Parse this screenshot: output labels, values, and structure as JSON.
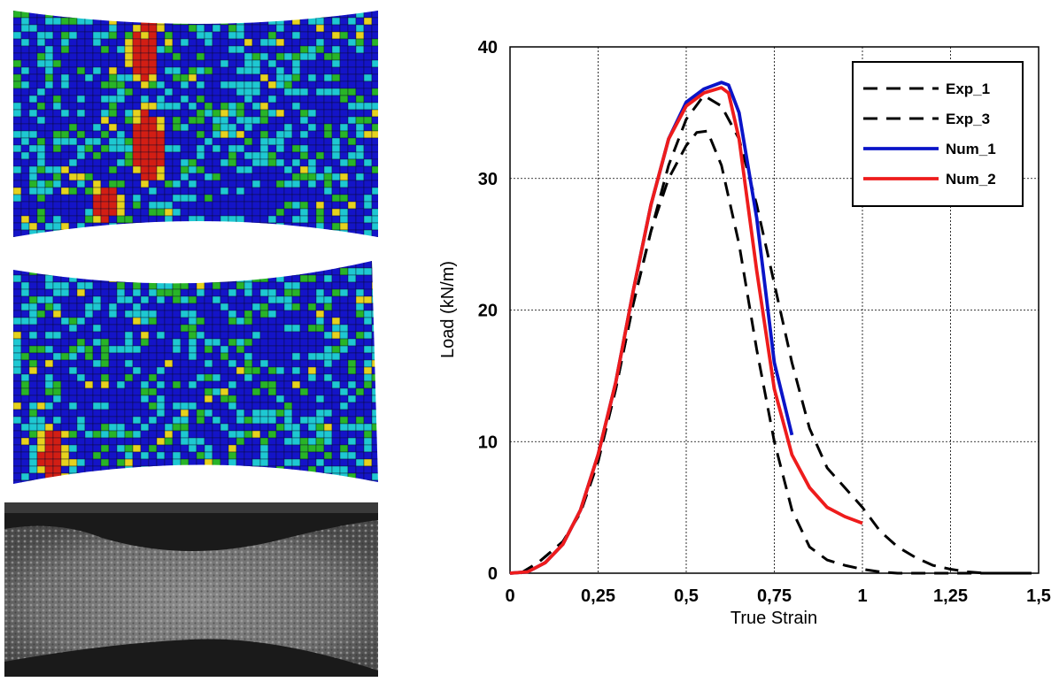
{
  "colors": {
    "contour_levels": [
      "#1414c8",
      "#1ec8d2",
      "#28b428",
      "#e6d21e",
      "#d21e14"
    ],
    "mesh_line": "#0a0a28",
    "exp_curve": "#000000",
    "num_1": "#0a14c8",
    "num_2": "#ee1c1c",
    "grid": "#000000"
  },
  "panels": {
    "mesh_top": "fe-contour-mesh",
    "mesh_mid": "fe-contour-mesh",
    "photo": "grayscale-specimen-photo"
  },
  "chart_data": {
    "type": "line",
    "xlabel": "True Strain",
    "ylabel": "Load (kN/m)",
    "xlim": [
      0,
      1.5
    ],
    "ylim": [
      0,
      40
    ],
    "xticks": [
      {
        "v": 0,
        "label": "0"
      },
      {
        "v": 0.25,
        "label": "0,25"
      },
      {
        "v": 0.5,
        "label": "0,5"
      },
      {
        "v": 0.75,
        "label": "0,75"
      },
      {
        "v": 1,
        "label": "1"
      },
      {
        "v": 1.25,
        "label": "1,25"
      },
      {
        "v": 1.5,
        "label": "1,5"
      }
    ],
    "yticks": [
      {
        "v": 0,
        "label": "0"
      },
      {
        "v": 10,
        "label": "10"
      },
      {
        "v": 20,
        "label": "20"
      },
      {
        "v": 30,
        "label": "30"
      },
      {
        "v": 40,
        "label": "40"
      }
    ],
    "grid": true,
    "legend_position": "top-right",
    "series": [
      {
        "name": "Exp_1",
        "style": "dashed",
        "color": "#000000",
        "points": [
          [
            0.03,
            0
          ],
          [
            0.08,
            0.8
          ],
          [
            0.15,
            2.4
          ],
          [
            0.2,
            4.6
          ],
          [
            0.25,
            8.5
          ],
          [
            0.3,
            14
          ],
          [
            0.35,
            20.5
          ],
          [
            0.4,
            26
          ],
          [
            0.45,
            30
          ],
          [
            0.5,
            32.5
          ],
          [
            0.53,
            33.5
          ],
          [
            0.56,
            33.6
          ],
          [
            0.6,
            31
          ],
          [
            0.65,
            25
          ],
          [
            0.7,
            17
          ],
          [
            0.75,
            10
          ],
          [
            0.8,
            4.8
          ],
          [
            0.85,
            2
          ],
          [
            0.9,
            1
          ],
          [
            0.95,
            0.6
          ],
          [
            1.0,
            0.3
          ],
          [
            1.05,
            0.1
          ],
          [
            1.1,
            0
          ],
          [
            1.48,
            0
          ]
        ]
      },
      {
        "name": "Exp_3",
        "style": "dashed",
        "color": "#000000",
        "points": [
          [
            0.03,
            0
          ],
          [
            0.08,
            0.8
          ],
          [
            0.15,
            2.4
          ],
          [
            0.2,
            4.6
          ],
          [
            0.25,
            8.5
          ],
          [
            0.3,
            14
          ],
          [
            0.35,
            20.5
          ],
          [
            0.4,
            26
          ],
          [
            0.45,
            31
          ],
          [
            0.5,
            34.5
          ],
          [
            0.55,
            36.3
          ],
          [
            0.6,
            35.5
          ],
          [
            0.65,
            33
          ],
          [
            0.7,
            28
          ],
          [
            0.75,
            22
          ],
          [
            0.8,
            16
          ],
          [
            0.85,
            11
          ],
          [
            0.9,
            8
          ],
          [
            0.95,
            6.5
          ],
          [
            1.0,
            5
          ],
          [
            1.05,
            3.2
          ],
          [
            1.1,
            2
          ],
          [
            1.15,
            1.2
          ],
          [
            1.2,
            0.6
          ],
          [
            1.25,
            0.3
          ],
          [
            1.3,
            0.1
          ],
          [
            1.35,
            0
          ],
          [
            1.48,
            0
          ]
        ]
      },
      {
        "name": "Num_1",
        "style": "solid",
        "color": "#0a14c8",
        "points": [
          [
            0,
            0
          ],
          [
            0.05,
            0.1
          ],
          [
            0.1,
            0.8
          ],
          [
            0.15,
            2.2
          ],
          [
            0.2,
            4.8
          ],
          [
            0.25,
            9
          ],
          [
            0.3,
            14.5
          ],
          [
            0.35,
            21.5
          ],
          [
            0.4,
            28
          ],
          [
            0.45,
            33
          ],
          [
            0.5,
            35.8
          ],
          [
            0.55,
            36.8
          ],
          [
            0.6,
            37.3
          ],
          [
            0.62,
            37.1
          ],
          [
            0.65,
            35
          ],
          [
            0.7,
            27
          ],
          [
            0.75,
            16
          ],
          [
            0.8,
            10.5
          ]
        ]
      },
      {
        "name": "Num_2",
        "style": "solid",
        "color": "#ee1c1c",
        "points": [
          [
            0,
            0
          ],
          [
            0.05,
            0.1
          ],
          [
            0.1,
            0.8
          ],
          [
            0.15,
            2.2
          ],
          [
            0.2,
            4.8
          ],
          [
            0.25,
            9
          ],
          [
            0.3,
            14.5
          ],
          [
            0.35,
            21.5
          ],
          [
            0.4,
            28
          ],
          [
            0.45,
            33
          ],
          [
            0.5,
            35.5
          ],
          [
            0.55,
            36.5
          ],
          [
            0.6,
            36.9
          ],
          [
            0.62,
            36.5
          ],
          [
            0.65,
            33
          ],
          [
            0.7,
            23
          ],
          [
            0.75,
            14
          ],
          [
            0.8,
            9
          ],
          [
            0.85,
            6.5
          ],
          [
            0.9,
            5
          ],
          [
            0.95,
            4.3
          ],
          [
            1.0,
            3.8
          ]
        ]
      }
    ]
  }
}
